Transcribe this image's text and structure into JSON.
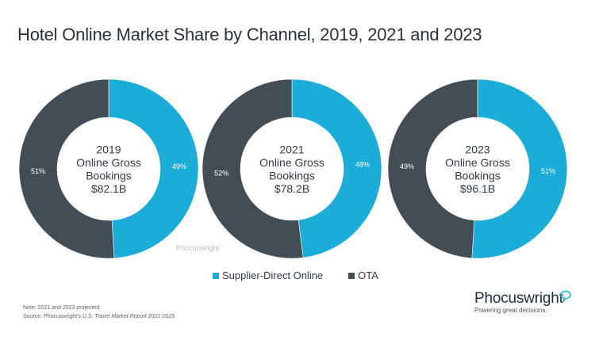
{
  "chart_data": {
    "type": "pie",
    "title": "Hotel Online Market Share by Channel, 2019, 2021 and 2023",
    "legend": {
      "placement": "bottom",
      "entries": [
        {
          "name": "Supplier-Direct Online",
          "color": "#1badd8"
        },
        {
          "name": "OTA",
          "color": "#434d56"
        }
      ]
    },
    "charts": [
      {
        "year": "2019",
        "center_lines": [
          "2019",
          "Online Gross",
          "Bookings",
          "$82.1B"
        ],
        "slices": [
          {
            "name": "Supplier-Direct Online",
            "value": 49,
            "label": "49%"
          },
          {
            "name": "OTA",
            "value": 51,
            "label": "51%"
          }
        ]
      },
      {
        "year": "2021",
        "center_lines": [
          "2021",
          "Online Gross",
          "Bookings",
          "$78.2B"
        ],
        "slices": [
          {
            "name": "Supplier-Direct Online",
            "value": 48,
            "label": "48%"
          },
          {
            "name": "OTA",
            "value": 52,
            "label": "52%"
          }
        ]
      },
      {
        "year": "2023",
        "center_lines": [
          "2023",
          "Online Gross",
          "Bookings",
          "$96.1B"
        ],
        "slices": [
          {
            "name": "Supplier-Direct Online",
            "value": 51,
            "label": "51%"
          },
          {
            "name": "OTA",
            "value": 49,
            "label": "49%"
          }
        ]
      }
    ]
  },
  "header": {
    "title": "Hotel Online Market Share by Channel, 2019, 2021 and 2023"
  },
  "watermark": "Phocuswright",
  "legend": {
    "items": [
      {
        "label": "Supplier-Direct Online",
        "color": "#1badd8"
      },
      {
        "label": "OTA",
        "color": "#434d56"
      }
    ]
  },
  "footer": {
    "note": "Note: 2021 and 2023 projected.",
    "source_prefix": "Source: Phocuswright's ",
    "source_title": "U.S. Travel Market Report 2021-2025"
  },
  "logo": {
    "name": "Phocuswright",
    "tagline": "Powering great decisions.",
    "accent_color": "#1badd8"
  }
}
